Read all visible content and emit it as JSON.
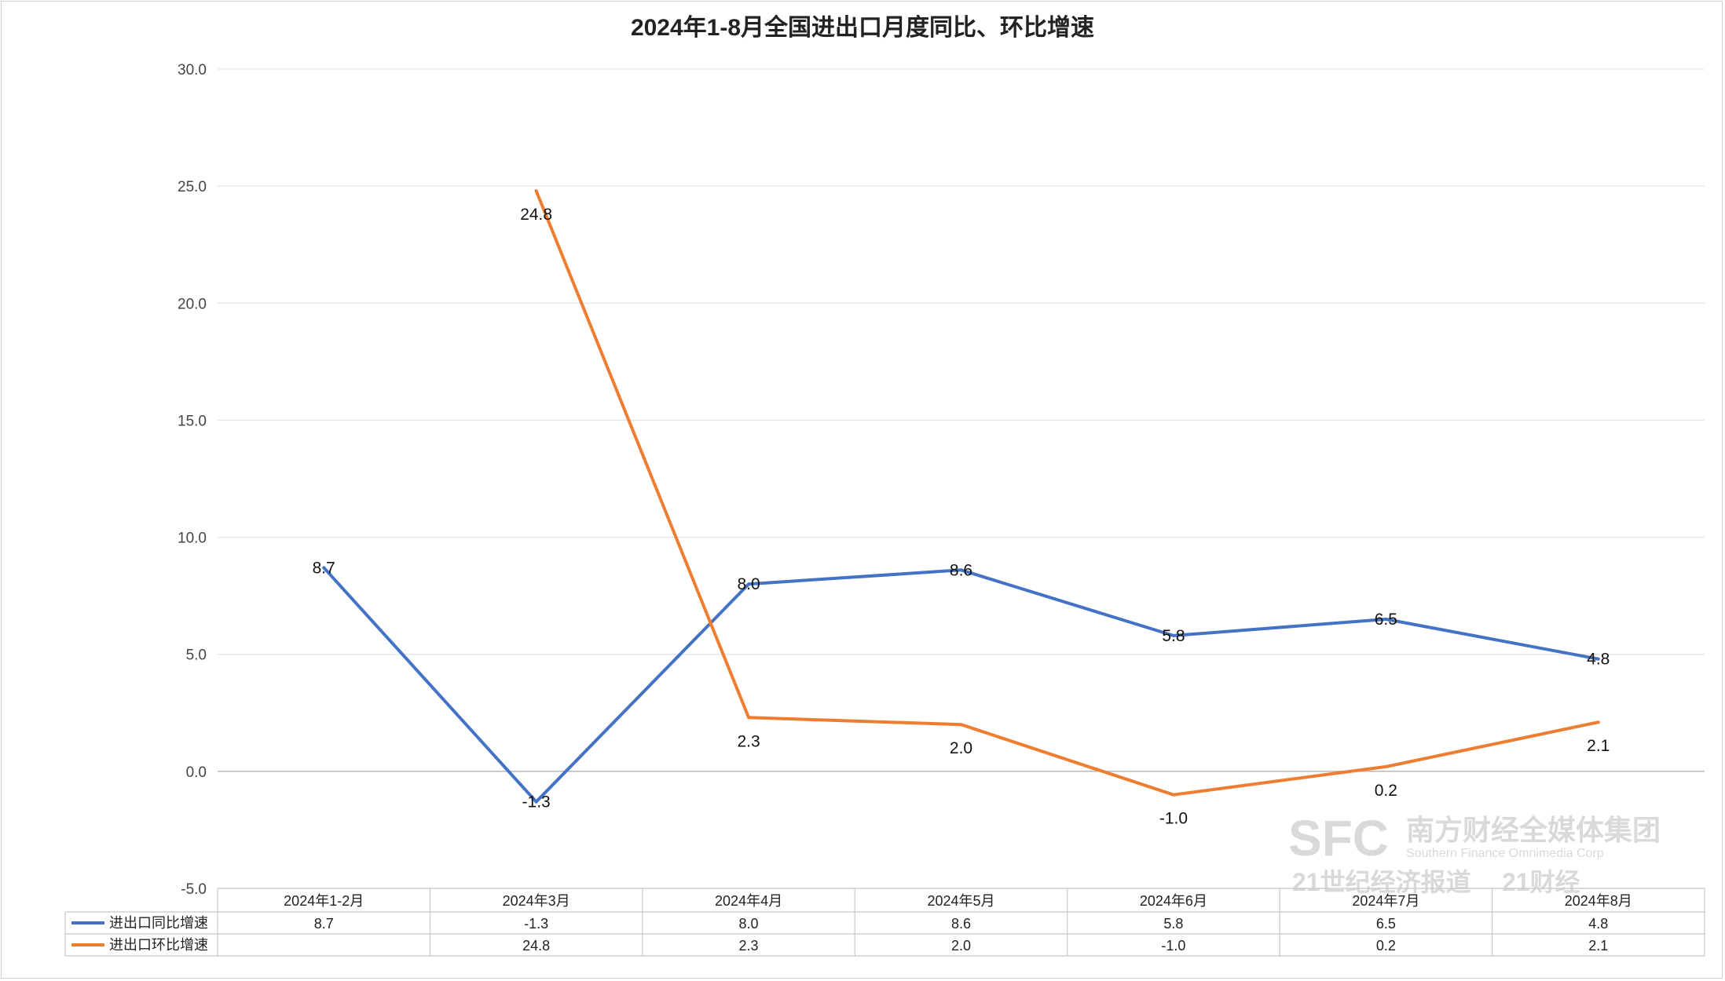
{
  "chart_data": {
    "type": "line",
    "title": "2024年1-8月全国进出口月度同比、环比增速",
    "categories": [
      "2024年1-2月",
      "2024年3月",
      "2024年4月",
      "2024年5月",
      "2024年6月",
      "2024年7月",
      "2024年8月"
    ],
    "ylim": [
      -5.0,
      30.0
    ],
    "yticks": [
      "30.0",
      "25.0",
      "20.0",
      "15.0",
      "10.0",
      "5.0",
      "0.0",
      "-5.0"
    ],
    "grid": true,
    "legend": "data-table-left",
    "series": [
      {
        "name": "进出口同比增速",
        "color": "#4472C4",
        "values": [
          8.7,
          -1.3,
          8.0,
          8.6,
          5.8,
          6.5,
          4.8
        ],
        "labels": [
          "8.7",
          "-1.3",
          "8.0",
          "8.6",
          "5.8",
          "6.5",
          "4.8"
        ]
      },
      {
        "name": "进出口环比增速",
        "color": "#ED7D31",
        "values": [
          null,
          24.8,
          2.3,
          2.0,
          -1.0,
          0.2,
          2.1
        ],
        "labels": [
          "",
          "24.8",
          "2.3",
          "2.0",
          "-1.0",
          "0.2",
          "2.1"
        ]
      }
    ]
  },
  "watermark": {
    "logo": "SFC",
    "group": "南方财经全媒体集团",
    "group_en": "Southern Finance Omnimedia Corp",
    "brand": "21世纪经济报道",
    "brand2": "21财经"
  }
}
